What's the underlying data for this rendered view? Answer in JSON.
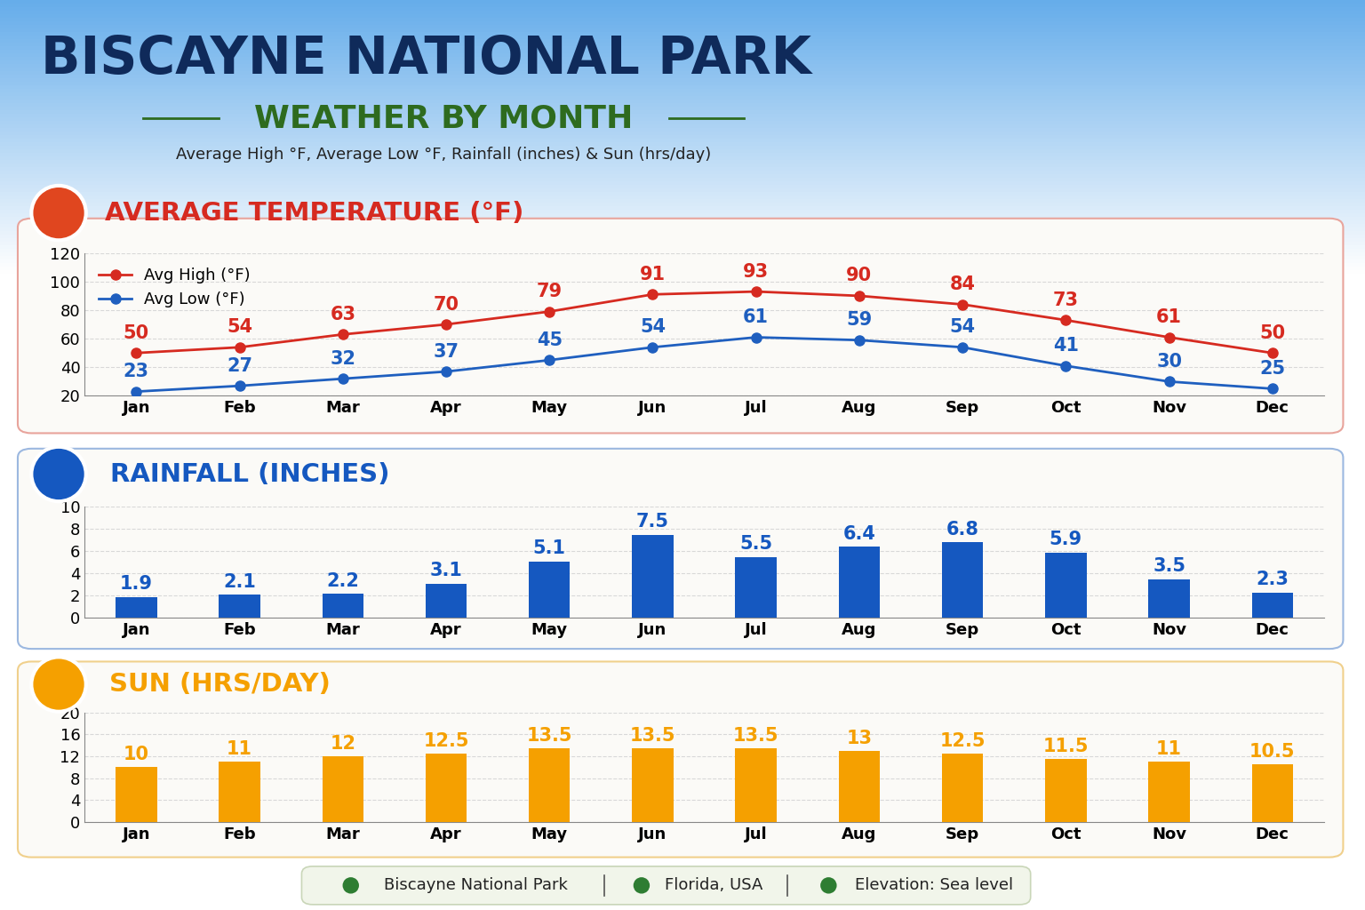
{
  "header": {
    "title": "BISCAYNE NATIONAL PARK",
    "subtitle": "WEATHER BY MONTH",
    "description": "Average High °F, Average Low °F, Rainfall (inches) & Sun (hrs/day)"
  },
  "chart_data": [
    {
      "type": "line",
      "title": "AVERAGE TEMPERATURE (°F)",
      "categories": [
        "Jan",
        "Feb",
        "Mar",
        "Apr",
        "May",
        "Jun",
        "Jul",
        "Aug",
        "Sep",
        "Oct",
        "Nov",
        "Dec"
      ],
      "series": [
        {
          "name": "Avg High (°F)",
          "color": "#d62a20",
          "marker": "o",
          "line_style": "solid",
          "values": [
            50,
            54,
            63,
            70,
            79,
            91,
            93,
            90,
            84,
            73,
            61,
            50
          ]
        },
        {
          "name": "Avg Low (°F)",
          "color": "#1f5fbf",
          "marker": "o",
          "line_style": "solid",
          "values": [
            23,
            27,
            32,
            37,
            45,
            54,
            61,
            59,
            54,
            41,
            30,
            25
          ]
        }
      ],
      "ylim": [
        20,
        120
      ],
      "yticks": [
        20,
        40,
        60,
        80,
        100,
        120
      ],
      "grid": true,
      "legend": "upper left",
      "data_labels": true
    },
    {
      "type": "bar",
      "title": "RAINFALL (INCHES)",
      "categories": [
        "Jan",
        "Feb",
        "Mar",
        "Apr",
        "May",
        "Jun",
        "Jul",
        "Aug",
        "Sep",
        "Oct",
        "Nov",
        "Dec"
      ],
      "values": [
        1.9,
        2.1,
        2.2,
        3.1,
        5.1,
        7.5,
        5.5,
        6.4,
        6.8,
        5.9,
        3.5,
        2.3
      ],
      "color": "#1558c0",
      "ylim": [
        0,
        10
      ],
      "yticks": [
        0,
        2,
        4,
        6,
        8,
        10
      ],
      "grid": true,
      "data_labels": true
    },
    {
      "type": "bar",
      "title": "SUN (HRS/DAY)",
      "categories": [
        "Jan",
        "Feb",
        "Mar",
        "Apr",
        "May",
        "Jun",
        "Jul",
        "Aug",
        "Sep",
        "Oct",
        "Nov",
        "Dec"
      ],
      "values": [
        10,
        11,
        12,
        12.5,
        13.5,
        13.5,
        13.5,
        13,
        12.5,
        11.5,
        11,
        10.5
      ],
      "color": "#f5a000",
      "ylim": [
        0,
        20
      ],
      "yticks": [
        0,
        4,
        8,
        12,
        16,
        20
      ],
      "grid": true,
      "data_labels": true
    }
  ],
  "footer": {
    "items": [
      "Biscayne National Park",
      "Florida, USA",
      "Elevation: Sea level"
    ]
  }
}
